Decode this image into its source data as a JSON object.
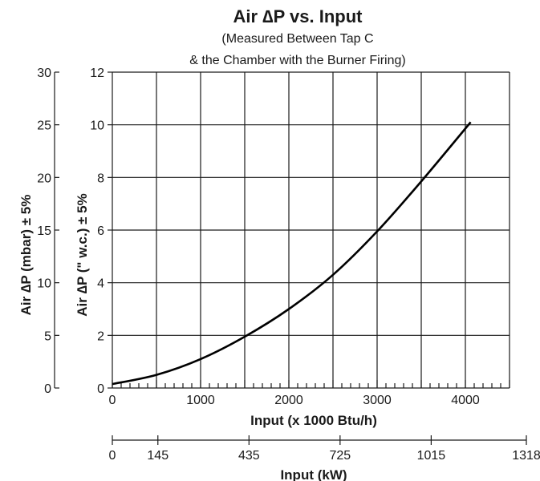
{
  "chart_data": {
    "type": "line",
    "title": "Air ∆P vs. Input",
    "subtitle_lines": [
      "(Measured Between Tap C",
      "& the Chamber with the Burner Firing)"
    ],
    "xlabel": "Input (x 1000 Btu/h)",
    "xlabel_secondary": "Input (kW)",
    "ylabel": "Air ∆P (\" w.c.) ± 5%",
    "ylabel_secondary": "Air ∆P (mbar) ± 5%",
    "xlim": [
      0,
      4500
    ],
    "ylim": [
      0,
      12
    ],
    "ylim_secondary": [
      0,
      30
    ],
    "x_ticks": [
      0,
      1000,
      2000,
      3000,
      4000
    ],
    "x_tick_labels": [
      "0",
      "1000",
      "2000",
      "3000",
      "4000"
    ],
    "x_minor_step": 100,
    "y_ticks": [
      0,
      2,
      4,
      6,
      8,
      10,
      12
    ],
    "y_tick_labels": [
      "0",
      "2",
      "4",
      "6",
      "8",
      "10",
      "12"
    ],
    "y2_ticks": [
      0,
      5,
      10,
      15,
      20,
      25,
      30
    ],
    "y2_tick_labels": [
      "0",
      "5",
      "10",
      "15",
      "20",
      "25",
      "30"
    ],
    "kw_ticks": [
      0,
      145,
      435,
      725,
      1015,
      1318
    ],
    "kw_tick_labels": [
      "0",
      "145",
      "435",
      "725",
      "1015",
      "1318"
    ],
    "kw_range": [
      0,
      1318
    ],
    "vertical_grid_x": [
      500,
      1000,
      1500,
      2000,
      2500,
      3000,
      3500,
      4000,
      4500
    ],
    "horizontal_grid_y": [
      2,
      4,
      6,
      8,
      10,
      12
    ],
    "grid": true,
    "series": [
      {
        "points": [
          [
            0,
            0.15
          ],
          [
            500,
            0.5
          ],
          [
            1000,
            1.1
          ],
          [
            1500,
            1.95
          ],
          [
            2000,
            3.0
          ],
          [
            2500,
            4.3
          ],
          [
            3000,
            5.95
          ],
          [
            3500,
            7.85
          ],
          [
            4060,
            10.1
          ]
        ]
      }
    ],
    "colors": {
      "line": "#000000",
      "grid": "#1a1a1a",
      "text": "#1a1a1a",
      "background": "#ffffff"
    }
  }
}
